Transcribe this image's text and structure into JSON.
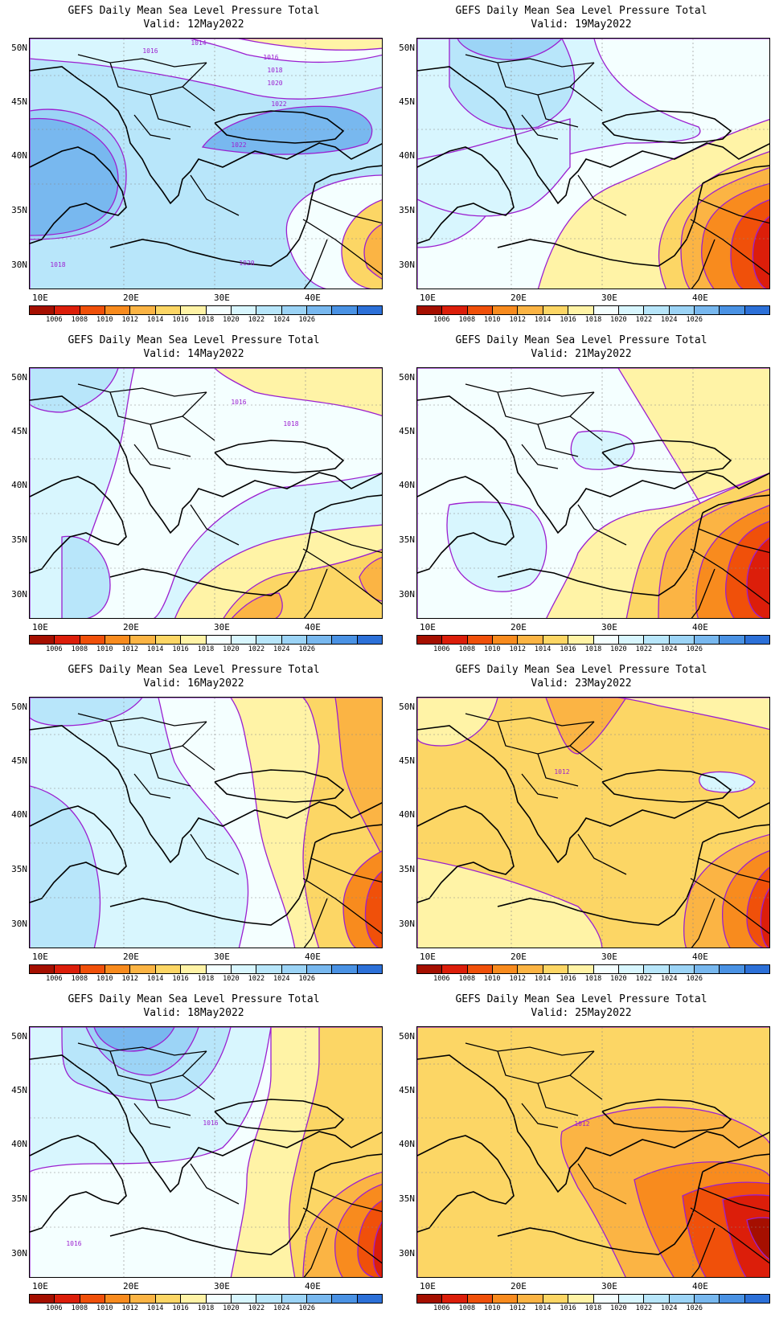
{
  "title_main": "GEFS Daily Mean Sea Level Pressure Total",
  "y_ticks": [
    "50N",
    "45N",
    "40N",
    "35N",
    "30N"
  ],
  "x_ticks": [
    "10E",
    "20E",
    "30E",
    "40E"
  ],
  "colorbar": {
    "colors": [
      "#a50f00",
      "#dc1e0a",
      "#f0500a",
      "#f88b1e",
      "#fbb444",
      "#fcd665",
      "#fff3a6",
      "#f4ffff",
      "#d8f6fe",
      "#b8e6fa",
      "#9cd4f6",
      "#78b8ef",
      "#4a92e4",
      "#2c70d8"
    ],
    "labels": [
      "1006",
      "1008",
      "1010",
      "1012",
      "1014",
      "1016",
      "1018",
      "1020",
      "1022",
      "1024",
      "1026"
    ]
  },
  "panels": [
    {
      "valid": "Valid: 12May2022",
      "contour_labels": [
        "1014",
        "1016",
        "1016",
        "1018",
        "1020",
        "1022",
        "1022",
        "1020",
        "1018"
      ]
    },
    {
      "valid": "Valid: 19May2022",
      "contour_labels": []
    },
    {
      "valid": "Valid: 14May2022",
      "contour_labels": [
        "1016",
        "1018"
      ]
    },
    {
      "valid": "Valid: 21May2022",
      "contour_labels": []
    },
    {
      "valid": "Valid: 16May2022",
      "contour_labels": []
    },
    {
      "valid": "Valid: 23May2022",
      "contour_labels": [
        "1012"
      ]
    },
    {
      "valid": "Valid: 18May2022",
      "contour_labels": [
        "1016",
        "1016"
      ]
    },
    {
      "valid": "Valid: 25May2022",
      "contour_labels": [
        "1012"
      ]
    }
  ]
}
